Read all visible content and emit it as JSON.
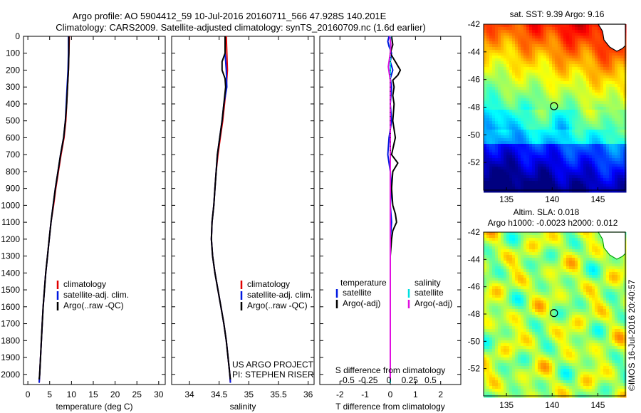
{
  "header": {
    "line1": "Argo profile: AO 5904412_59 10-Jul-2016 20160711_566 47.928S 140.201E",
    "line2": "Climatology: CARS2009. Satellite-adjusted climatology: synTS_20160709.nc (1.6d earlier)"
  },
  "depth_ticks": [
    "0",
    "100",
    "200",
    "300",
    "400",
    "500",
    "600",
    "700",
    "800",
    "900",
    "1000",
    "1100",
    "1200",
    "1300",
    "1400",
    "1500",
    "1600",
    "1700",
    "1800",
    "1900",
    "2000"
  ],
  "credits": {
    "line1": "US ARGO PROJECT",
    "line2": "PI: STEPHEN RISER"
  },
  "timestamp": "©IMOS 16-Jul-2016 20:40:57",
  "colors": {
    "climatology": "#e00000",
    "satellite": "#0018e0",
    "argo": "#000000",
    "sal_satellite": "#00e0e0",
    "sal_argo": "#e010e0"
  },
  "chart_data": [
    {
      "type": "line",
      "panel": "temperature",
      "xlabel": "temperature (deg C)",
      "ylabel": "depth",
      "xlim": [
        -1,
        31.5
      ],
      "ylim": [
        2060,
        0
      ],
      "xticks": [
        0,
        5,
        10,
        15,
        20,
        25,
        30
      ],
      "legend": [
        "climatology",
        "satellite-adj. clim.",
        "Argo(..raw -QC)"
      ],
      "series": [
        {
          "name": "climatology",
          "depth": [
            0,
            100,
            200,
            300,
            400,
            500,
            600,
            700,
            800,
            900,
            1000,
            1100,
            1200,
            1300,
            1400,
            1500,
            1600,
            1700,
            1800,
            1900,
            2000,
            2050
          ],
          "values": [
            9.5,
            9.4,
            9.3,
            9.1,
            8.9,
            8.7,
            8.3,
            7.6,
            7.0,
            6.4,
            5.9,
            5.3,
            4.9,
            4.5,
            4.1,
            3.8,
            3.5,
            3.3,
            3.1,
            2.9,
            2.7,
            2.6
          ]
        },
        {
          "name": "satellite-adj. clim.",
          "depth": [
            0,
            100,
            200,
            300,
            400,
            500,
            600,
            700,
            800,
            900,
            1000,
            1100,
            1200,
            1300,
            1400,
            1500,
            1600,
            1700,
            1800,
            1900,
            2000,
            2050
          ],
          "values": [
            9.3,
            9.3,
            9.2,
            9.0,
            8.8,
            8.6,
            8.2,
            7.5,
            6.9,
            6.3,
            5.8,
            5.3,
            4.9,
            4.5,
            4.1,
            3.8,
            3.5,
            3.3,
            3.1,
            2.9,
            2.7,
            2.6
          ]
        },
        {
          "name": "Argo(..raw -QC)",
          "depth": [
            0,
            100,
            200,
            300,
            400,
            500,
            600,
            700,
            800,
            900,
            1000,
            1100,
            1200,
            1300,
            1400,
            1500,
            1600,
            1700,
            1800,
            1900,
            2000,
            2030
          ],
          "values": [
            9.4,
            9.4,
            9.3,
            9.1,
            8.9,
            8.6,
            8.2,
            7.5,
            6.9,
            6.3,
            5.8,
            5.3,
            4.9,
            4.5,
            4.1,
            3.8,
            3.5,
            3.3,
            3.1,
            2.9,
            2.7,
            2.6
          ]
        }
      ]
    },
    {
      "type": "line",
      "panel": "salinity",
      "xlabel": "salinity",
      "ylabel": "depth",
      "xlim": [
        33.7,
        36.1
      ],
      "ylim": [
        2060,
        0
      ],
      "xticks": [
        34,
        34.5,
        35,
        35.5,
        36
      ],
      "legend": [
        "climatology",
        "satellite-adj. clim.",
        "Argo(..raw -QC)"
      ],
      "series": [
        {
          "name": "climatology",
          "depth": [
            0,
            100,
            200,
            300,
            400,
            500,
            600,
            700,
            800,
            900,
            1000,
            1100,
            1200,
            1300,
            1400,
            1500,
            1600,
            1700,
            1800,
            1900,
            2000,
            2050
          ],
          "values": [
            34.62,
            34.63,
            34.64,
            34.62,
            34.59,
            34.56,
            34.52,
            34.48,
            34.45,
            34.43,
            34.41,
            34.38,
            34.37,
            34.39,
            34.43,
            34.48,
            34.53,
            34.58,
            34.62,
            34.65,
            34.68,
            34.69
          ]
        },
        {
          "name": "satellite-adj. clim.",
          "depth": [
            0,
            100,
            200,
            300,
            400,
            500,
            600,
            700,
            800,
            900,
            1000,
            1100,
            1200,
            1300,
            1400,
            1500,
            1600,
            1700,
            1800,
            1900,
            2000,
            2050
          ],
          "values": [
            34.6,
            34.6,
            34.62,
            34.63,
            34.58,
            34.55,
            34.51,
            34.47,
            34.45,
            34.43,
            34.41,
            34.38,
            34.37,
            34.39,
            34.43,
            34.48,
            34.53,
            34.58,
            34.62,
            34.65,
            34.68,
            34.69
          ]
        },
        {
          "name": "Argo(..raw -QC)",
          "depth": [
            0,
            100,
            150,
            200,
            250,
            300,
            400,
            500,
            600,
            700,
            800,
            900,
            1000,
            1100,
            1200,
            1300,
            1400,
            1500,
            1600,
            1700,
            1800,
            1900,
            2000,
            2030
          ],
          "values": [
            34.6,
            34.6,
            34.55,
            34.55,
            34.6,
            34.61,
            34.58,
            34.55,
            34.51,
            34.47,
            34.45,
            34.43,
            34.41,
            34.38,
            34.37,
            34.39,
            34.43,
            34.48,
            34.53,
            34.58,
            34.62,
            34.65,
            34.68,
            34.69
          ]
        }
      ]
    },
    {
      "type": "line",
      "panel": "difference",
      "xlabel": "T difference from climatology",
      "xlabel_top": "S difference from climatology",
      "ylabel": "depth",
      "xlim": [
        -2.8,
        2.8
      ],
      "ylim": [
        2060,
        0
      ],
      "xticks": [
        -2,
        -1,
        0,
        1,
        2
      ],
      "xticklabels": [
        "-2",
        "-1",
        "0",
        "1",
        "2"
      ],
      "top_ticks": [
        -0.5,
        -0.25,
        0,
        0.25,
        0.5
      ],
      "top_ticklabels": [
        "-0.5",
        "-0.25",
        "0",
        "0.25",
        "0.5"
      ],
      "legend_groups": [
        "temperature",
        "salinity"
      ],
      "legend": [
        "satellite",
        "Argo(-adj)",
        "satellite",
        "Argo(-adj)"
      ],
      "series": [
        {
          "name": "temperature satellite",
          "depth": [
            0,
            30,
            60,
            100,
            150,
            200,
            250,
            300,
            400,
            500,
            600,
            700,
            800,
            900,
            1000,
            1100,
            1200,
            1300,
            1500,
            1700,
            2000,
            2050
          ],
          "values": [
            -0.05,
            -0.1,
            -0.05,
            0.05,
            0.0,
            0.1,
            0.0,
            0.05,
            0.0,
            0.05,
            -0.05,
            -0.1,
            0.0,
            0.05,
            0.0,
            0.05,
            0.0,
            0.0,
            0.0,
            0.0,
            0.0,
            0.0
          ]
        },
        {
          "name": "temperature Argo(-adj)",
          "depth": [
            0,
            50,
            100,
            150,
            200,
            230,
            260,
            300,
            350,
            400,
            500,
            600,
            700,
            750,
            800,
            900,
            1000,
            1050,
            1100,
            1150,
            1200,
            1300,
            1500,
            1700,
            2000,
            2030
          ],
          "values": [
            0.05,
            0.1,
            0.0,
            0.2,
            0.4,
            0.3,
            0.1,
            0.15,
            0.1,
            0.15,
            0.1,
            0.2,
            0.05,
            0.3,
            0.1,
            0.05,
            0.1,
            0.2,
            0.25,
            0.1,
            0.05,
            0.0,
            0.0,
            0.0,
            0.0,
            0.0
          ]
        },
        {
          "name": "salinity satellite",
          "depth": [
            0,
            50,
            100,
            200,
            300,
            500,
            800,
            1000,
            1200,
            1500,
            1800,
            2000,
            2050
          ],
          "values": [
            0.01,
            0.0,
            0.0,
            0.0,
            0.0,
            0.0,
            0.0,
            0.0,
            0.0,
            0.0,
            0.0,
            0.0,
            0.0
          ]
        },
        {
          "name": "salinity Argo(-adj)",
          "depth": [
            0,
            50,
            100,
            150,
            180,
            220,
            260,
            300,
            400,
            600,
            800,
            1000,
            1200,
            1500,
            2000,
            2030
          ],
          "values": [
            -0.02,
            0.02,
            0.0,
            -0.05,
            -0.08,
            -0.04,
            0.0,
            0.0,
            0.0,
            0.0,
            0.0,
            0.0,
            0.0,
            0.0,
            0.0,
            0.0
          ]
        }
      ]
    },
    {
      "type": "heatmap",
      "panel": "sst_map",
      "title": "sat. SST: 9.39 Argo: 9.16",
      "xticks": [
        135,
        140,
        145
      ],
      "yticks": [
        -42,
        -44,
        -46,
        -48,
        -50,
        -52
      ],
      "xlim": [
        132.5,
        148
      ],
      "ylim": [
        -54,
        -42
      ],
      "marker": {
        "lon": 140.2,
        "lat": -47.93
      }
    },
    {
      "type": "heatmap",
      "panel": "sla_map",
      "title_line1": "Altim. SLA: 0.018",
      "title_line2": "Argo h1000: -0.0023 h2000: 0.012",
      "xticks": [
        135,
        140,
        145
      ],
      "yticks": [
        -42,
        -44,
        -46,
        -48,
        -50,
        -52
      ],
      "xlim": [
        132.5,
        148
      ],
      "ylim": [
        -54,
        -42
      ],
      "marker": {
        "lon": 140.2,
        "lat": -47.93
      }
    }
  ]
}
